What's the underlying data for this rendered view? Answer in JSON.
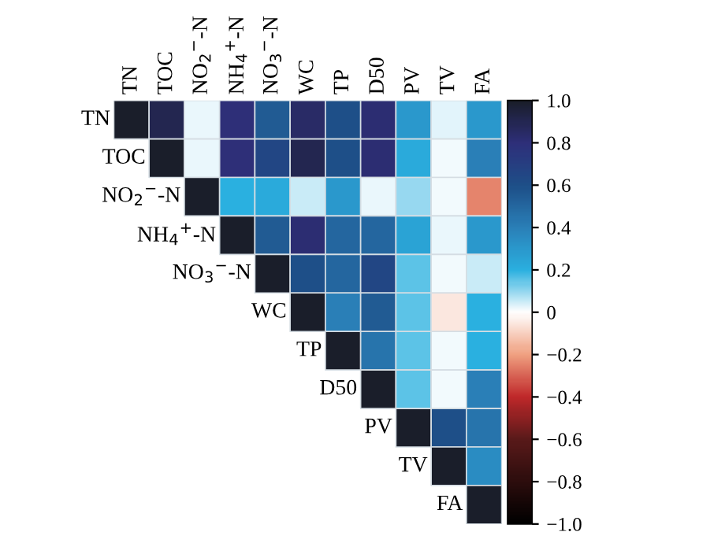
{
  "chart_data": {
    "type": "heatmap",
    "categories": [
      "TN",
      "TOC",
      "NO$_{2}$$^{−}$-N",
      "NH$_{4}$$^{+}$-N",
      "NO$_{3}$$^{−}$-N",
      "WC",
      "TP",
      "D50",
      "PV",
      "TV",
      "FA"
    ],
    "y_categories": [
      "TN",
      "TOC",
      "NO$_{2}$$^{−}$-N",
      "NH$_{4}$$^{+}$-N",
      "NO$_{3}$$^{−}$-N",
      "WC",
      "TP",
      "D50",
      "PV",
      "TV",
      "FA"
    ],
    "cells": [
      [
        1.0,
        0.9,
        0.02,
        0.8,
        0.55,
        0.85,
        0.6,
        0.82,
        0.3,
        0.03,
        0.3
      ],
      [
        null,
        1.0,
        0.02,
        0.8,
        0.65,
        0.9,
        0.6,
        0.82,
        0.22,
        0.01,
        0.4
      ],
      [
        null,
        null,
        1.0,
        0.2,
        0.22,
        0.05,
        0.3,
        0.02,
        0.1,
        0.01,
        -0.25
      ],
      [
        null,
        null,
        null,
        1.0,
        0.55,
        0.82,
        0.5,
        0.5,
        0.25,
        0.02,
        0.3
      ],
      [
        null,
        null,
        null,
        null,
        1.0,
        0.6,
        0.5,
        0.65,
        0.15,
        0.01,
        0.05
      ],
      [
        null,
        null,
        null,
        null,
        null,
        1.0,
        0.4,
        0.55,
        0.15,
        -0.05,
        0.2
      ],
      [
        null,
        null,
        null,
        null,
        null,
        null,
        1.0,
        0.45,
        0.15,
        0.01,
        0.2
      ],
      [
        null,
        null,
        null,
        null,
        null,
        null,
        null,
        1.0,
        0.15,
        0.01,
        0.4
      ],
      [
        null,
        null,
        null,
        null,
        null,
        null,
        null,
        null,
        1.0,
        0.6,
        0.45
      ],
      [
        null,
        null,
        null,
        null,
        null,
        null,
        null,
        null,
        null,
        1.0,
        0.35
      ],
      [
        null,
        null,
        null,
        null,
        null,
        null,
        null,
        null,
        null,
        null,
        1.0
      ]
    ],
    "clim": [
      -1.0,
      1.0
    ],
    "cticks": [
      {
        "value": -1.0,
        "label": "−1.0"
      },
      {
        "value": -0.8,
        "label": "−0.8"
      },
      {
        "value": -0.6,
        "label": "−0.6"
      },
      {
        "value": -0.4,
        "label": "−0.4"
      },
      {
        "value": -0.2,
        "label": "−0.2"
      },
      {
        "value": 0,
        "label": "0"
      },
      {
        "value": 0.2,
        "label": "0.2"
      },
      {
        "value": 0.4,
        "label": "0.4"
      },
      {
        "value": 0.6,
        "label": "0.6"
      },
      {
        "value": 0.8,
        "label": "0.8"
      },
      {
        "value": 1.0,
        "label": "1.0"
      }
    ]
  }
}
